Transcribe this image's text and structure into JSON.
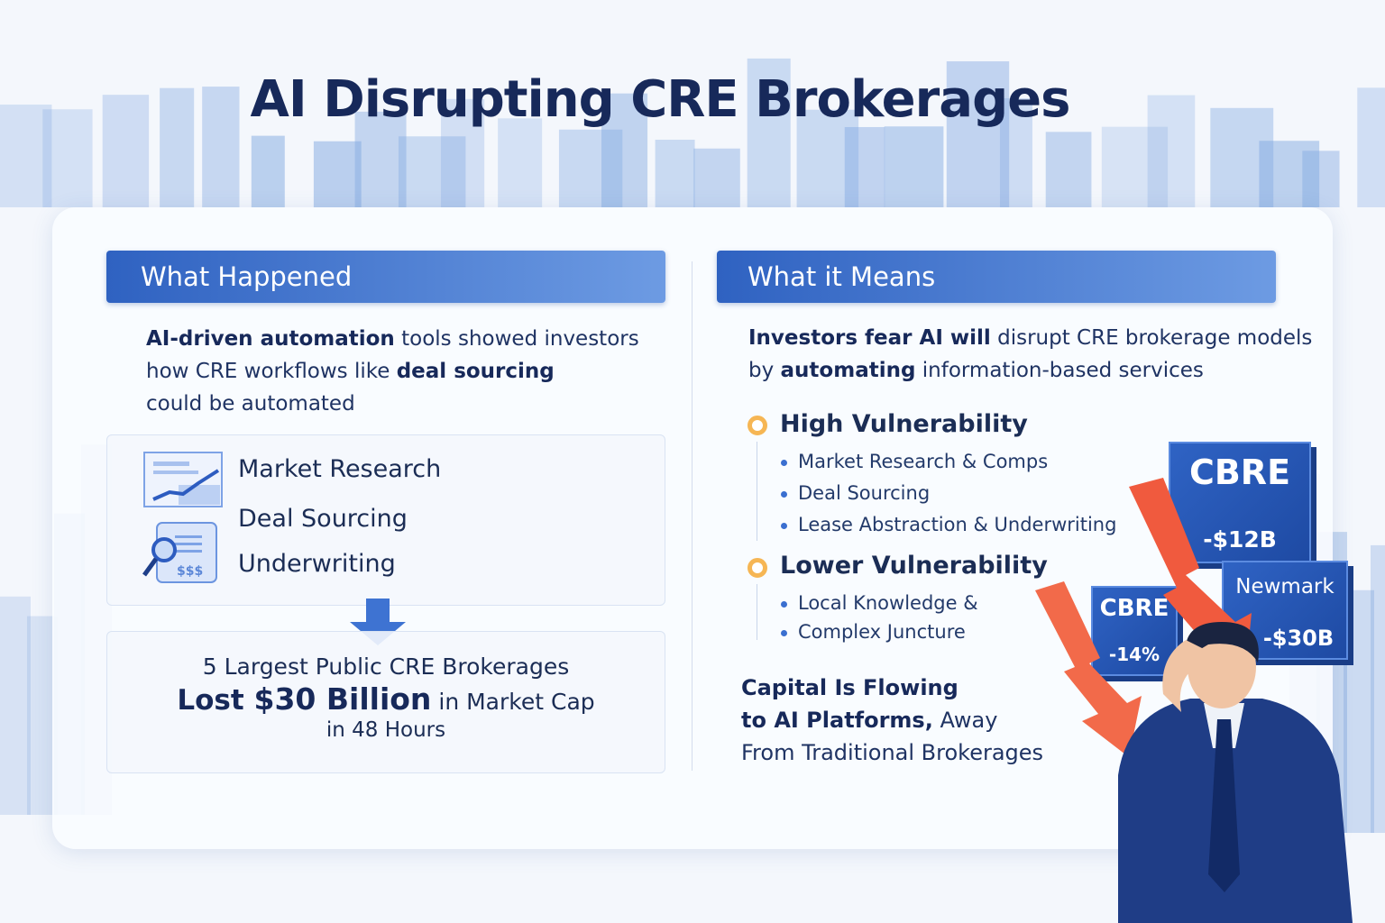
{
  "title": "AI Disrupting CRE Brokerages",
  "left": {
    "header": "What Happened",
    "intro": {
      "b1": "AI-driven automation",
      "t1": " tools showed investors",
      "t2": "how CRE workflows like ",
      "b2": "deal sourcing",
      "t3": "could be automated"
    },
    "items": [
      "Market Research",
      "Deal Sourcing",
      "Underwriting"
    ],
    "icons": [
      "chart-report-icon",
      "magnifier-document-icon"
    ],
    "icon_text": "$$$",
    "result": {
      "line1": "5 Largest Public CRE Brokerages",
      "lost": "Lost ",
      "amount": "$30 Billion",
      "tail": " in Market Cap",
      "line3": "in 48 Hours"
    }
  },
  "right": {
    "header": "What it Means",
    "intro": {
      "b1": "Investors fear AI will",
      "t1": " disrupt CRE brokerage models",
      "t2": "by ",
      "b2": "automating",
      "t3": " information-based services"
    },
    "high": {
      "label": "High Vulnerability",
      "items": [
        "Market Research & Comps",
        "Deal Sourcing",
        "Lease Abstraction & Underwriting"
      ]
    },
    "low": {
      "label": "Lower Vulnerability",
      "items": [
        "Local Knowledge &",
        "Complex Juncture"
      ]
    },
    "capital": {
      "b1": "Capital Is Flowing",
      "b2": "to AI Platforms,",
      "t1": " Away",
      "t2": "From Traditional Brokerages"
    }
  },
  "signs": [
    {
      "name": "CBRE",
      "value": "-$12B"
    },
    {
      "name": "CBRE",
      "value": "-14%"
    },
    {
      "name": "Newmark",
      "value": "-$30B"
    }
  ],
  "colors": {
    "primary": "#2f62c1",
    "title": "#17295a",
    "accent": "#f6b654",
    "arrow": "#f0553b"
  }
}
